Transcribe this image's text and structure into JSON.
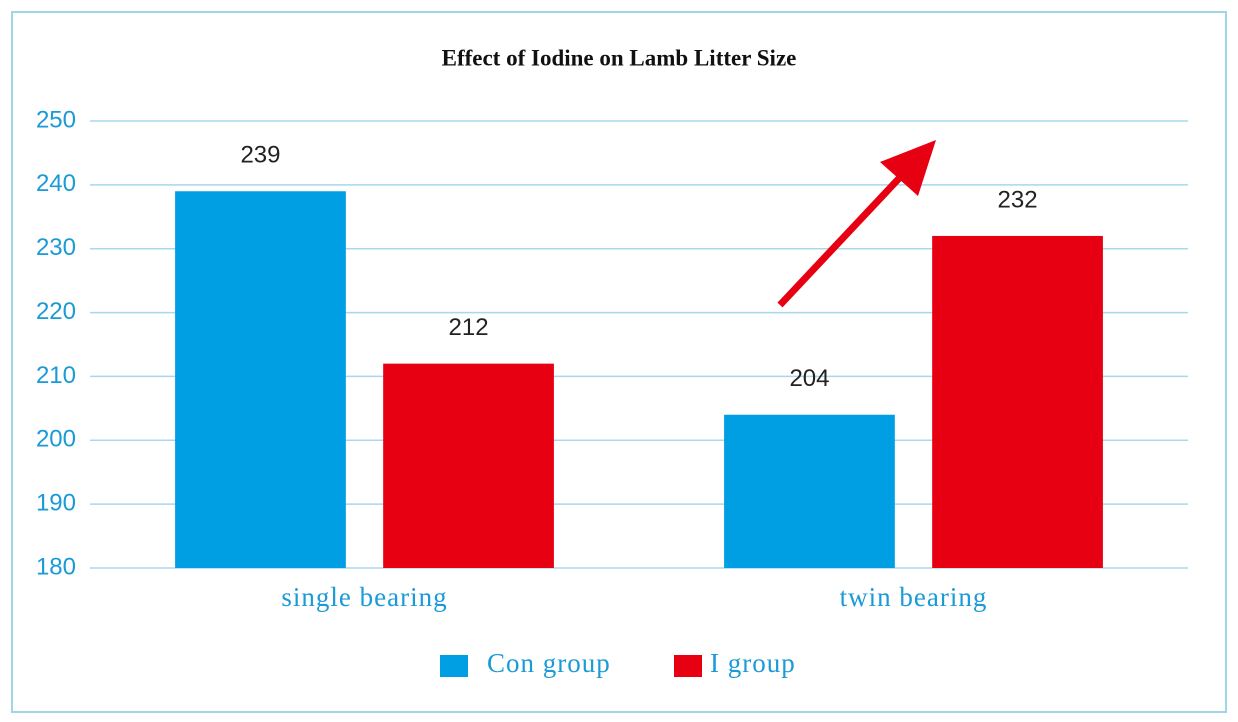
{
  "chart_data": {
    "type": "bar",
    "title": "Effect of Iodine on Lamb Litter Size",
    "categories": [
      "single bearing",
      "twin bearing"
    ],
    "series": [
      {
        "name": "Con group",
        "color": "#009fe3",
        "values": [
          239,
          204
        ]
      },
      {
        "name": "I group",
        "color": "#e60012",
        "values": [
          212,
          232
        ]
      }
    ],
    "ylim": [
      180,
      250
    ],
    "yticks": [
      180,
      190,
      200,
      210,
      220,
      230,
      240,
      250
    ],
    "grid": true,
    "legend": "bottom"
  }
}
